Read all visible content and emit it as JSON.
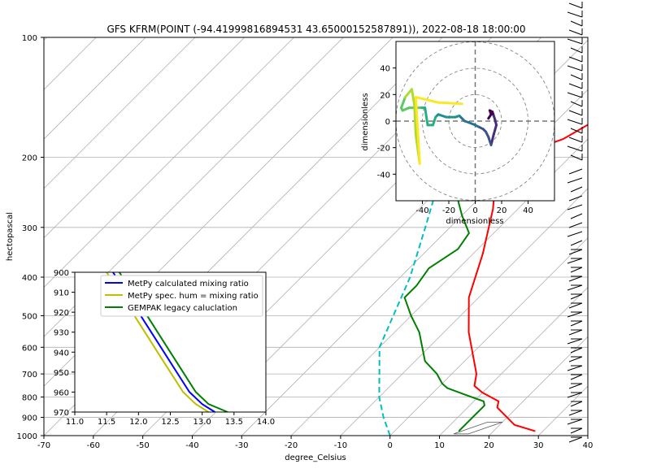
{
  "figure": {
    "title": "GFS KFRM(POINT (-94.41999816894531 43.65000152587891)), 2022-08-18 18:00:00"
  },
  "chart_data": [
    {
      "type": "line",
      "name": "skew-t",
      "xlabel": "degree_Celsius",
      "ylabel": "hectopascal",
      "xlim": [
        -70,
        40
      ],
      "ylim": [
        1000,
        100
      ],
      "yscale": "log",
      "skew": "45 degrees",
      "x_ticks": [
        -70,
        -60,
        -50,
        -40,
        -30,
        -20,
        -10,
        0,
        10,
        20,
        30,
        40
      ],
      "y_ticks": [
        1000,
        900,
        800,
        700,
        600,
        500,
        400,
        300,
        200,
        100
      ],
      "grid": true,
      "series": [
        {
          "color": "#ff0000",
          "kind": "temperature",
          "points": [
            [
              28.5,
              975
            ],
            [
              23,
              940
            ],
            [
              16,
              850
            ],
            [
              15,
              820
            ],
            [
              10,
              780
            ],
            [
              7,
              750
            ],
            [
              5,
              700
            ],
            [
              -5,
              550
            ],
            [
              -12,
              450
            ],
            [
              -18,
              350
            ],
            [
              -25,
              270
            ],
            [
              -33,
              210
            ],
            [
              -30,
              195
            ],
            [
              -25,
              180
            ],
            [
              -22,
              160
            ],
            [
              -20,
              145
            ],
            [
              -18,
              125
            ],
            [
              -15,
              110
            ],
            [
              -12,
              100
            ]
          ]
        },
        {
          "color": "#008000",
          "kind": "dewpoint",
          "points": [
            [
              13,
              975
            ],
            [
              13,
              900
            ],
            [
              13,
              840
            ],
            [
              12,
              820
            ],
            [
              7,
              790
            ],
            [
              2,
              760
            ],
            [
              0,
              740
            ],
            [
              -3,
              700
            ],
            [
              -8,
              650
            ],
            [
              -15,
              550
            ],
            [
              -20,
              500
            ],
            [
              -25,
              450
            ],
            [
              -25,
              420
            ],
            [
              -26,
              380
            ],
            [
              -24,
              340
            ],
            [
              -25,
              310
            ],
            [
              -30,
              280
            ],
            [
              -35,
              250
            ],
            [
              -40,
              220
            ],
            [
              -45,
              195
            ],
            [
              -50,
              180
            ]
          ]
        },
        {
          "color": "#00bfbf",
          "kind": "dashed-line",
          "points": [
            [
              0,
              1000
            ],
            [
              -5,
              900
            ],
            [
              -10,
              800
            ],
            [
              -20,
              600
            ],
            [
              -28,
              400
            ],
            [
              -35,
              300
            ],
            [
              -45,
              200
            ],
            [
              -60,
              130
            ]
          ]
        }
      ],
      "wind_barbs": true
    },
    {
      "type": "line",
      "name": "hodograph",
      "xlabel": "dimensionless",
      "ylabel": "dimensionless",
      "xlim": [
        -60,
        60
      ],
      "ylim": [
        -60,
        60
      ],
      "x_ticks": [
        -40,
        -20,
        0,
        20,
        40
      ],
      "y_ticks": [
        -40,
        -20,
        0,
        20,
        40
      ],
      "rings": [
        20,
        40,
        60
      ],
      "colormap": "viridis",
      "path": [
        [
          10,
          2
        ],
        [
          12,
          5
        ],
        [
          11,
          8
        ],
        [
          13,
          7
        ],
        [
          14,
          4
        ],
        [
          15,
          1
        ],
        [
          16,
          -3
        ],
        [
          14,
          -10
        ],
        [
          12,
          -18
        ],
        [
          10,
          -12
        ],
        [
          8,
          -8
        ],
        [
          6,
          -6
        ],
        [
          2,
          -4
        ],
        [
          0,
          -3
        ],
        [
          -5,
          -1
        ],
        [
          -8,
          0
        ],
        [
          -12,
          4
        ],
        [
          -15,
          3
        ],
        [
          -22,
          3
        ],
        [
          -28,
          5
        ],
        [
          -30,
          3
        ],
        [
          -32,
          -3
        ],
        [
          -36,
          -3
        ],
        [
          -38,
          10
        ],
        [
          -42,
          10
        ],
        [
          -50,
          10
        ],
        [
          -55,
          8
        ],
        [
          -56,
          10
        ],
        [
          -53,
          18
        ],
        [
          -48,
          24
        ],
        [
          -46,
          12
        ],
        [
          -45,
          -10
        ],
        [
          -42,
          -32
        ],
        [
          -45,
          18
        ],
        [
          -28,
          14
        ],
        [
          -10,
          13
        ]
      ]
    },
    {
      "type": "line",
      "name": "mixing-ratio-inset",
      "xlim": [
        11.0,
        14.0
      ],
      "ylim": [
        970,
        900
      ],
      "x_ticks": [
        11.0,
        11.5,
        12.0,
        12.5,
        13.0,
        13.5,
        14.0
      ],
      "y_ticks": [
        900,
        910,
        920,
        930,
        940,
        950,
        960,
        970
      ],
      "legend": "upper right",
      "series": [
        {
          "name": "MetPy calculated mixing ratio",
          "color": "#0000ff",
          "points": [
            [
              11.6,
              900
            ],
            [
              11.8,
              910
            ],
            [
              12.0,
              920
            ],
            [
              12.2,
              930
            ],
            [
              12.4,
              940
            ],
            [
              12.6,
              950
            ],
            [
              12.8,
              960
            ],
            [
              13.0,
              966
            ],
            [
              13.2,
              970
            ]
          ]
        },
        {
          "name": "MetPy spec. hum = mixing ratio",
          "color": "#bfbf00",
          "points": [
            [
              11.5,
              900
            ],
            [
              11.7,
              910
            ],
            [
              11.9,
              920
            ],
            [
              12.1,
              930
            ],
            [
              12.3,
              940
            ],
            [
              12.5,
              950
            ],
            [
              12.7,
              960
            ],
            [
              12.9,
              966
            ],
            [
              13.1,
              970
            ]
          ]
        },
        {
          "name": "GEMPAK legacy caluclation",
          "color": "#008000",
          "points": [
            [
              11.7,
              900
            ],
            [
              11.9,
              910
            ],
            [
              12.1,
              920
            ],
            [
              12.3,
              930
            ],
            [
              12.5,
              940
            ],
            [
              12.7,
              950
            ],
            [
              12.9,
              960
            ],
            [
              13.1,
              966
            ],
            [
              13.4,
              970
            ]
          ]
        }
      ]
    }
  ]
}
